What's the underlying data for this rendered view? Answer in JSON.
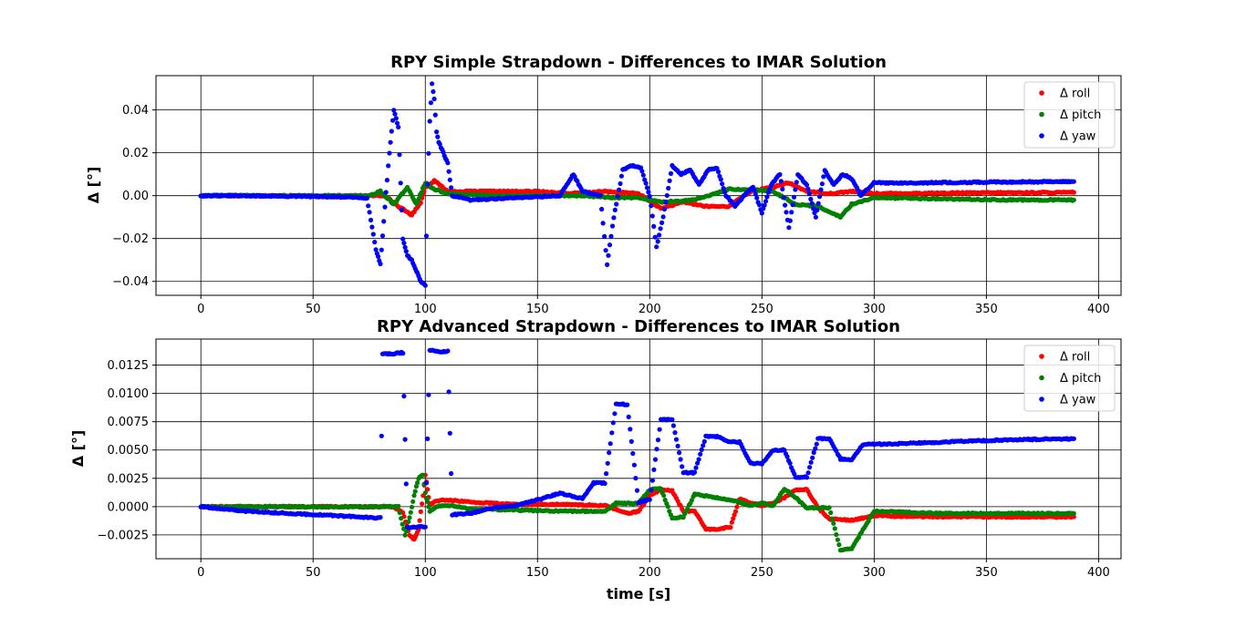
{
  "chart_data": [
    {
      "type": "scatter",
      "title": "RPY Simple Strapdown - Differences to IMAR Solution",
      "xlabel": "",
      "ylabel": "Δ [°]",
      "xlim": [
        -20,
        410
      ],
      "ylim": [
        -0.0465,
        0.056
      ],
      "x_ticks": [
        0,
        50,
        100,
        150,
        200,
        250,
        300,
        350,
        400
      ],
      "y_ticks": [
        -0.04,
        -0.02,
        0.0,
        0.02,
        0.04
      ],
      "y_tick_labels": [
        "−0.04",
        "−0.02",
        "0.00",
        "0.02",
        "0.04"
      ],
      "grid": true,
      "legend_position": "upper right",
      "series": [
        {
          "name": "Δ roll",
          "color": "#ff0000",
          "x": [
            0,
            20,
            40,
            60,
            75,
            82,
            88,
            94,
            98,
            100,
            104,
            110,
            130,
            150,
            165,
            180,
            195,
            205,
            215,
            225,
            235,
            245,
            255,
            262,
            270,
            280,
            290,
            300,
            330,
            360,
            389
          ],
          "y": [
            0,
            0,
            0,
            -0.0005,
            0,
            0,
            -0.005,
            -0.009,
            -0.003,
            0.004,
            0.007,
            0.002,
            0.002,
            0.002,
            0.001,
            0.002,
            0.001,
            -0.006,
            -0.003,
            -0.005,
            -0.005,
            0.002,
            0.004,
            0.006,
            0.002,
            0.001,
            0.002,
            0.001,
            0.0012,
            0.0014,
            0.0015
          ]
        },
        {
          "name": "Δ pitch",
          "color": "#008000",
          "x": [
            0,
            20,
            40,
            60,
            75,
            80,
            86,
            92,
            96,
            100,
            104,
            110,
            130,
            150,
            170,
            185,
            195,
            205,
            220,
            235,
            245,
            255,
            265,
            275,
            285,
            290,
            300,
            330,
            360,
            389
          ],
          "y": [
            0,
            0,
            0,
            0,
            0,
            0.002,
            -0.004,
            0.004,
            -0.004,
            0.006,
            0.003,
            0.001,
            0,
            0,
            0,
            -0.001,
            -0.001,
            -0.003,
            -0.002,
            0.003,
            0.003,
            0.002,
            -0.004,
            -0.005,
            -0.01,
            -0.004,
            -0.001,
            -0.0015,
            -0.002,
            -0.002
          ]
        },
        {
          "name": "Δ yaw",
          "color": "#0000ff",
          "x": [
            0,
            20,
            40,
            60,
            74,
            78,
            80,
            82,
            84,
            86,
            88,
            90,
            92,
            94,
            96,
            98,
            100,
            101,
            102,
            103,
            104,
            105,
            106,
            108,
            110,
            112,
            120,
            140,
            160,
            166,
            170,
            178,
            181,
            184,
            188,
            192,
            196,
            200,
            203,
            206,
            210,
            214,
            218,
            222,
            226,
            230,
            234,
            238,
            242,
            246,
            250,
            254,
            258,
            262,
            266,
            270,
            274,
            278,
            282,
            286,
            290,
            294,
            300,
            320,
            340,
            360,
            389
          ],
          "y": [
            0,
            0,
            -0.0003,
            -0.0005,
            -0.001,
            -0.025,
            -0.032,
            -0.005,
            0.02,
            0.04,
            0.032,
            -0.02,
            -0.028,
            -0.03,
            -0.035,
            -0.04,
            -0.042,
            0.005,
            0.035,
            0.052,
            0.045,
            0.03,
            0.025,
            0.02,
            0.015,
            0.0,
            -0.002,
            -0.001,
            0.0,
            0.01,
            0.002,
            0.0,
            -0.032,
            -0.01,
            0.012,
            0.014,
            0.013,
            0.0,
            -0.024,
            -0.01,
            0.014,
            0.01,
            0.012,
            0.005,
            0.012,
            0.013,
            0.0,
            -0.005,
            0.0,
            0.004,
            -0.008,
            0.005,
            0.01,
            -0.015,
            0.01,
            0.005,
            -0.01,
            0.012,
            0.005,
            0.01,
            0.008,
            0.0,
            0.006,
            0.006,
            0.0062,
            0.0064,
            0.0066
          ]
        }
      ]
    },
    {
      "type": "scatter",
      "title": "RPY Advanced Strapdown - Differences to IMAR Solution",
      "xlabel": "time [s]",
      "ylabel": "Δ [°]",
      "xlim": [
        -20,
        410
      ],
      "ylim": [
        -0.0046,
        0.0148
      ],
      "x_ticks": [
        0,
        50,
        100,
        150,
        200,
        250,
        300,
        350,
        400
      ],
      "y_ticks": [
        -0.0025,
        0.0,
        0.0025,
        0.005,
        0.0075,
        0.01,
        0.0125
      ],
      "y_tick_labels": [
        "−0.0025",
        "0.0000",
        "0.0025",
        "0.0050",
        "0.0075",
        "0.0100",
        "0.0125"
      ],
      "grid": true,
      "legend_position": "upper right",
      "series": [
        {
          "name": "Δ roll",
          "color": "#ff0000",
          "x": [
            0,
            30,
            60,
            85,
            90,
            93,
            95,
            97,
            99,
            100,
            102,
            105,
            110,
            120,
            140,
            160,
            180,
            190,
            195,
            200,
            205,
            210,
            215,
            220,
            225,
            230,
            236,
            240,
            245,
            250,
            255,
            260,
            265,
            270,
            275,
            280,
            285,
            290,
            300,
            330,
            360,
            389
          ],
          "y": [
            0,
            0,
            0,
            0,
            -0.0005,
            -0.0025,
            -0.0029,
            -0.002,
            0.001,
            0.0028,
            0.0002,
            0.0005,
            0.0006,
            0.0004,
            0.0002,
            0.0002,
            0.0001,
            -0.0006,
            -0.0004,
            0.001,
            0.0015,
            0.0014,
            -0.0004,
            -0.0004,
            -0.002,
            -0.002,
            -0.0018,
            0.0007,
            0.0003,
            0.0001,
            0.0003,
            0.0008,
            0.0015,
            0.0015,
            -0.0001,
            -0.0011,
            -0.0011,
            -0.0012,
            -0.0008,
            -0.0009,
            -0.0009,
            -0.0009
          ]
        },
        {
          "name": "Δ pitch",
          "color": "#008000",
          "x": [
            0,
            30,
            60,
            80,
            88,
            91,
            93,
            95,
            97,
            99,
            100,
            102,
            105,
            110,
            120,
            140,
            160,
            180,
            185,
            195,
            200,
            205,
            210,
            215,
            220,
            230,
            240,
            245,
            250,
            255,
            260,
            265,
            270,
            280,
            285,
            290,
            300,
            330,
            360,
            389
          ],
          "y": [
            0,
            0,
            0,
            0,
            0,
            -0.0025,
            -0.001,
            0.001,
            0.0025,
            0.0028,
            0.0012,
            -0.0004,
            0,
            0.0001,
            -0.0002,
            -0.0003,
            -0.0004,
            -0.0004,
            0.0003,
            0.0003,
            0.0015,
            0.0016,
            -0.001,
            -0.0009,
            0.0011,
            0.0008,
            0.0004,
            0.0001,
            0.0003,
            0.0001,
            0.0016,
            0.0008,
            -0.0001,
            -0.0001,
            -0.0038,
            -0.0037,
            -0.0004,
            -0.0006,
            -0.0006,
            -0.0006
          ]
        },
        {
          "name": "Δ yaw",
          "color": "#0000ff",
          "x": [
            0,
            10,
            20,
            40,
            60,
            80,
            81,
            85,
            90,
            92,
            96,
            100,
            102,
            106,
            110,
            112,
            120,
            130,
            140,
            150,
            160,
            170,
            175,
            180,
            185,
            190,
            195,
            200,
            205,
            210,
            215,
            220,
            225,
            230,
            235,
            240,
            245,
            250,
            255,
            260,
            265,
            270,
            275,
            280,
            285,
            290,
            295,
            300,
            330,
            360,
            389
          ],
          "y": [
            0,
            -0.0002,
            -0.0004,
            -0.0006,
            -0.0008,
            -0.001,
            0.0135,
            0.0135,
            0.0136,
            -0.0018,
            -0.0018,
            -0.0018,
            0.0138,
            0.0137,
            0.0137,
            -0.0007,
            -0.0006,
            -0.0001,
            0.0001,
            0.0006,
            0.0012,
            0.0007,
            0.0021,
            0.0021,
            0.0091,
            0.009,
            0.0004,
            0.0006,
            0.0077,
            0.0077,
            0.003,
            0.003,
            0.0062,
            0.0062,
            0.0058,
            0.0057,
            0.0038,
            0.0038,
            0.005,
            0.005,
            0.0026,
            0.0026,
            0.006,
            0.006,
            0.0042,
            0.0041,
            0.0055,
            0.0055,
            0.0057,
            0.0059,
            0.006
          ]
        }
      ]
    }
  ]
}
